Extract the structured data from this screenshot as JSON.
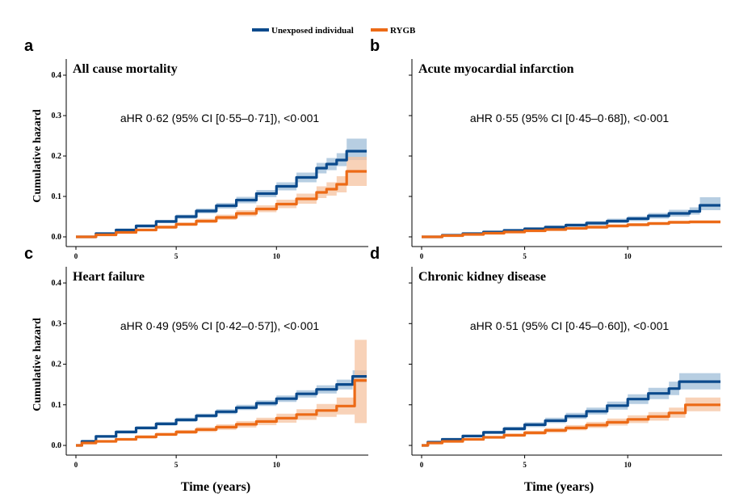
{
  "legend": {
    "items": [
      {
        "label": "Unexposed individual",
        "color": "#0b4a8c"
      },
      {
        "label": "RYGB",
        "color": "#ec6a16"
      }
    ],
    "placement": "top-center"
  },
  "axes": {
    "ylabel": "Cumulative hazard",
    "xlabel": "Time (years)"
  },
  "colors": {
    "unexposed": "#0b4a8c",
    "unexposed_band": "#9fbdd8",
    "rygb": "#ec6a16",
    "rygb_band": "#f6c3a0"
  },
  "chart_data": [
    {
      "type": "line",
      "panel_letter": "a",
      "title": "All cause mortality",
      "annotation": "aHR 0·62 (95% CI [0·55–0·71]), <0·001",
      "xlim": [
        0,
        14.5
      ],
      "ylim": [
        0,
        0.42
      ],
      "xticks": [
        0,
        5,
        10
      ],
      "yticks": [
        0.0,
        0.1,
        0.2,
        0.3,
        0.4
      ],
      "ytick_labels": [
        "0.0",
        "0.1",
        "0.2",
        "0.3",
        "0.4"
      ],
      "series": [
        {
          "name": "Unexposed individual",
          "x": [
            0,
            1,
            2,
            3,
            4,
            5,
            6,
            7,
            8,
            9,
            10,
            11,
            12,
            12.5,
            13,
            13.5,
            14.5
          ],
          "y": [
            0,
            0.008,
            0.017,
            0.027,
            0.038,
            0.05,
            0.064,
            0.077,
            0.091,
            0.107,
            0.125,
            0.147,
            0.17,
            0.18,
            0.19,
            0.212,
            0.212
          ],
          "lower": [
            0,
            0.006,
            0.014,
            0.023,
            0.034,
            0.045,
            0.058,
            0.07,
            0.083,
            0.098,
            0.115,
            0.135,
            0.157,
            0.165,
            0.175,
            0.19,
            0.19
          ],
          "upper": [
            0,
            0.01,
            0.02,
            0.031,
            0.042,
            0.055,
            0.07,
            0.084,
            0.099,
            0.116,
            0.135,
            0.159,
            0.183,
            0.195,
            0.207,
            0.243,
            0.243
          ]
        },
        {
          "name": "RYGB",
          "x": [
            0,
            1,
            2,
            3,
            4,
            5,
            6,
            7,
            8,
            9,
            10,
            11,
            12,
            12.5,
            13,
            13.5,
            14.5
          ],
          "y": [
            0,
            0.005,
            0.011,
            0.017,
            0.024,
            0.031,
            0.039,
            0.048,
            0.058,
            0.069,
            0.081,
            0.094,
            0.11,
            0.118,
            0.13,
            0.162,
            0.162
          ],
          "lower": [
            0,
            0.004,
            0.009,
            0.014,
            0.02,
            0.027,
            0.034,
            0.042,
            0.051,
            0.061,
            0.071,
            0.082,
            0.096,
            0.102,
            0.11,
            0.126,
            0.126
          ],
          "upper": [
            0,
            0.006,
            0.013,
            0.02,
            0.028,
            0.036,
            0.045,
            0.055,
            0.066,
            0.078,
            0.092,
            0.107,
            0.125,
            0.135,
            0.15,
            0.198,
            0.198
          ]
        }
      ]
    },
    {
      "type": "line",
      "panel_letter": "b",
      "title": "Acute myocardial infarction",
      "annotation": "aHR 0·55 (95% CI [0·45–0·68]), <0·001",
      "xlim": [
        0,
        14.5
      ],
      "ylim": [
        0,
        0.42
      ],
      "xticks": [
        0,
        5,
        10
      ],
      "yticks": [
        0.0,
        0.1,
        0.2,
        0.3,
        0.4
      ],
      "ytick_labels": [],
      "series": [
        {
          "name": "Unexposed individual",
          "x": [
            0,
            1,
            2,
            3,
            4,
            5,
            6,
            7,
            8,
            9,
            10,
            11,
            12,
            13,
            13.5,
            14.5
          ],
          "y": [
            0,
            0.004,
            0.008,
            0.012,
            0.016,
            0.02,
            0.024,
            0.029,
            0.034,
            0.039,
            0.045,
            0.052,
            0.058,
            0.063,
            0.078,
            0.078
          ],
          "lower": [
            0,
            0.003,
            0.006,
            0.01,
            0.013,
            0.017,
            0.021,
            0.025,
            0.029,
            0.034,
            0.039,
            0.045,
            0.05,
            0.055,
            0.066,
            0.066
          ],
          "upper": [
            0,
            0.005,
            0.01,
            0.014,
            0.019,
            0.023,
            0.028,
            0.033,
            0.039,
            0.045,
            0.051,
            0.059,
            0.067,
            0.073,
            0.098,
            0.098
          ]
        },
        {
          "name": "RYGB",
          "x": [
            0,
            1,
            2,
            3,
            4,
            5,
            6,
            7,
            8,
            9,
            10,
            11,
            12,
            13,
            14.5
          ],
          "y": [
            0,
            0.003,
            0.006,
            0.009,
            0.012,
            0.015,
            0.018,
            0.021,
            0.024,
            0.027,
            0.03,
            0.033,
            0.036,
            0.037,
            0.037
          ],
          "lower": [
            0,
            0.002,
            0.005,
            0.007,
            0.01,
            0.013,
            0.015,
            0.018,
            0.02,
            0.023,
            0.026,
            0.029,
            0.032,
            0.033,
            0.033
          ],
          "upper": [
            0,
            0.004,
            0.007,
            0.011,
            0.014,
            0.017,
            0.021,
            0.024,
            0.028,
            0.031,
            0.034,
            0.037,
            0.04,
            0.041,
            0.041
          ]
        }
      ]
    },
    {
      "type": "line",
      "panel_letter": "c",
      "title": "Heart failure",
      "annotation": "aHR 0·49 (95% CI [0·42–0·57]), <0·001",
      "xlim": [
        0,
        14.5
      ],
      "ylim": [
        0,
        0.42
      ],
      "xticks": [
        0,
        5,
        10
      ],
      "yticks": [
        0.0,
        0.1,
        0.2,
        0.3,
        0.4
      ],
      "ytick_labels": [
        "0.0",
        "0.1",
        "0.2",
        "0.3",
        "0.4"
      ],
      "series": [
        {
          "name": "Unexposed individual",
          "x": [
            0,
            0.3,
            1,
            2,
            3,
            4,
            5,
            6,
            7,
            8,
            9,
            10,
            11,
            12,
            13,
            13.8,
            14.5
          ],
          "y": [
            0,
            0.01,
            0.022,
            0.033,
            0.043,
            0.053,
            0.063,
            0.073,
            0.083,
            0.093,
            0.104,
            0.115,
            0.127,
            0.138,
            0.15,
            0.17,
            0.17
          ],
          "lower": [
            0,
            0.008,
            0.019,
            0.029,
            0.039,
            0.049,
            0.058,
            0.068,
            0.077,
            0.087,
            0.097,
            0.107,
            0.118,
            0.128,
            0.138,
            0.155,
            0.155
          ],
          "upper": [
            0,
            0.012,
            0.025,
            0.037,
            0.047,
            0.058,
            0.068,
            0.078,
            0.089,
            0.1,
            0.111,
            0.123,
            0.136,
            0.148,
            0.162,
            0.185,
            0.185
          ]
        },
        {
          "name": "RYGB",
          "x": [
            0,
            0.3,
            1,
            2,
            3,
            4,
            5,
            6,
            7,
            8,
            9,
            10,
            11,
            12,
            13,
            13.9,
            14.5
          ],
          "y": [
            0,
            0.006,
            0.01,
            0.015,
            0.021,
            0.027,
            0.033,
            0.039,
            0.045,
            0.052,
            0.059,
            0.067,
            0.076,
            0.086,
            0.097,
            0.16,
            0.16
          ],
          "lower": [
            0,
            0.004,
            0.008,
            0.012,
            0.017,
            0.023,
            0.028,
            0.033,
            0.038,
            0.044,
            0.05,
            0.056,
            0.063,
            0.07,
            0.076,
            0.055,
            0.055
          ],
          "upper": [
            0,
            0.008,
            0.012,
            0.018,
            0.025,
            0.031,
            0.038,
            0.045,
            0.052,
            0.06,
            0.068,
            0.078,
            0.089,
            0.102,
            0.118,
            0.26,
            0.26
          ]
        }
      ]
    },
    {
      "type": "line",
      "panel_letter": "d",
      "title": "Chronic kidney disease",
      "annotation": "aHR 0·51 (95% CI [0·45–0·60]), <0·001",
      "xlim": [
        0,
        14.5
      ],
      "ylim": [
        0,
        0.42
      ],
      "xticks": [
        0,
        5,
        10
      ],
      "yticks": [
        0.0,
        0.1,
        0.2,
        0.3,
        0.4
      ],
      "ytick_labels": [],
      "series": [
        {
          "name": "Unexposed individual",
          "x": [
            0,
            0.3,
            1,
            2,
            3,
            4,
            5,
            6,
            7,
            8,
            9,
            10,
            11,
            12,
            12.5,
            14.5
          ],
          "y": [
            0,
            0.008,
            0.015,
            0.023,
            0.032,
            0.041,
            0.051,
            0.061,
            0.072,
            0.084,
            0.098,
            0.114,
            0.128,
            0.14,
            0.157,
            0.157
          ],
          "lower": [
            0,
            0.006,
            0.012,
            0.02,
            0.028,
            0.036,
            0.045,
            0.055,
            0.065,
            0.076,
            0.088,
            0.102,
            0.114,
            0.124,
            0.138,
            0.138
          ],
          "upper": [
            0,
            0.01,
            0.018,
            0.026,
            0.036,
            0.046,
            0.057,
            0.068,
            0.08,
            0.093,
            0.108,
            0.126,
            0.142,
            0.157,
            0.178,
            0.178
          ]
        },
        {
          "name": "RYGB",
          "x": [
            0,
            0.3,
            1,
            2,
            3,
            4,
            5,
            6,
            7,
            8,
            9,
            10,
            11,
            12,
            12.8,
            14.5
          ],
          "y": [
            0,
            0.006,
            0.01,
            0.015,
            0.02,
            0.025,
            0.031,
            0.037,
            0.043,
            0.05,
            0.057,
            0.064,
            0.071,
            0.08,
            0.1,
            0.1
          ],
          "lower": [
            0,
            0.004,
            0.008,
            0.012,
            0.017,
            0.021,
            0.026,
            0.031,
            0.037,
            0.043,
            0.049,
            0.055,
            0.061,
            0.068,
            0.084,
            0.084
          ],
          "upper": [
            0,
            0.008,
            0.012,
            0.018,
            0.023,
            0.029,
            0.036,
            0.043,
            0.05,
            0.058,
            0.066,
            0.074,
            0.082,
            0.093,
            0.118,
            0.118
          ]
        }
      ]
    }
  ]
}
